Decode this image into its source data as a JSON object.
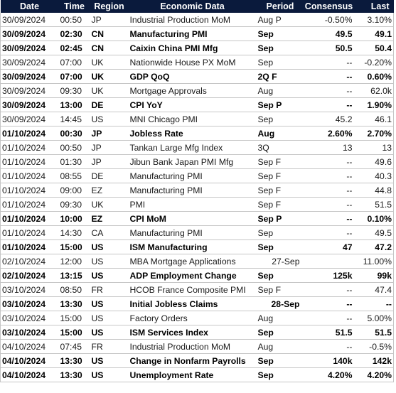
{
  "headers": [
    "Date",
    "Time",
    "Region",
    "Economic Data",
    "Period",
    "Consensus",
    "Last"
  ],
  "rows": [
    {
      "date": "30/09/2024",
      "time": "00:50",
      "region": "JP",
      "data": "Industrial Production MoM",
      "period": "Aug P",
      "consensus": "-0.50%",
      "last": "3.10%",
      "bold": false
    },
    {
      "date": "30/09/2024",
      "time": "02:30",
      "region": "CN",
      "data": "Manufacturing PMI",
      "period": "Sep",
      "consensus": "49.5",
      "last": "49.1",
      "bold": true
    },
    {
      "date": "30/09/2024",
      "time": "02:45",
      "region": "CN",
      "data": "Caixin China PMI Mfg",
      "period": "Sep",
      "consensus": "50.5",
      "last": "50.4",
      "bold": true
    },
    {
      "date": "30/09/2024",
      "time": "07:00",
      "region": "UK",
      "data": "Nationwide House PX MoM",
      "period": "Sep",
      "consensus": "--",
      "last": "-0.20%",
      "bold": false
    },
    {
      "date": "30/09/2024",
      "time": "07:00",
      "region": "UK",
      "data": "GDP QoQ",
      "period": "2Q F",
      "consensus": "--",
      "last": "0.60%",
      "bold": true
    },
    {
      "date": "30/09/2024",
      "time": "09:30",
      "region": "UK",
      "data": "Mortgage Approvals",
      "period": "Aug",
      "consensus": "--",
      "last": "62.0k",
      "bold": false
    },
    {
      "date": "30/09/2024",
      "time": "13:00",
      "region": "DE",
      "data": "CPI YoY",
      "period": "Sep P",
      "consensus": "--",
      "last": "1.90%",
      "bold": true
    },
    {
      "date": "30/09/2024",
      "time": "14:45",
      "region": "US",
      "data": "MNI Chicago PMI",
      "period": "Sep",
      "consensus": "45.2",
      "last": "46.1",
      "bold": false
    },
    {
      "date": "01/10/2024",
      "time": "00:30",
      "region": "JP",
      "data": "Jobless Rate",
      "period": "Aug",
      "consensus": "2.60%",
      "last": "2.70%",
      "bold": true,
      "sep": true
    },
    {
      "date": "01/10/2024",
      "time": "00:50",
      "region": "JP",
      "data": "Tankan Large Mfg Index",
      "period": "3Q",
      "consensus": "13",
      "last": "13",
      "bold": false
    },
    {
      "date": "01/10/2024",
      "time": "01:30",
      "region": "JP",
      "data": "Jibun Bank Japan PMI Mfg",
      "period": "Sep F",
      "consensus": "--",
      "last": "49.6",
      "bold": false
    },
    {
      "date": "01/10/2024",
      "time": "08:55",
      "region": "DE",
      "data": "Manufacturing PMI",
      "period": "Sep F",
      "consensus": "--",
      "last": "40.3",
      "bold": false
    },
    {
      "date": "01/10/2024",
      "time": "09:00",
      "region": "EZ",
      "data": "Manufacturing PMI",
      "period": "Sep F",
      "consensus": "--",
      "last": "44.8",
      "bold": false
    },
    {
      "date": "01/10/2024",
      "time": "09:30",
      "region": "UK",
      "data": "PMI",
      "period": "Sep F",
      "consensus": "--",
      "last": "51.5",
      "bold": false
    },
    {
      "date": "01/10/2024",
      "time": "10:00",
      "region": "EZ",
      "data": "CPI MoM",
      "period": "Sep P",
      "consensus": "--",
      "last": "0.10%",
      "bold": true
    },
    {
      "date": "01/10/2024",
      "time": "14:30",
      "region": "CA",
      "data": "Manufacturing PMI",
      "period": "Sep",
      "consensus": "--",
      "last": "49.5",
      "bold": false
    },
    {
      "date": "01/10/2024",
      "time": "15:00",
      "region": "US",
      "data": "ISM Manufacturing",
      "period": "Sep",
      "consensus": "47",
      "last": "47.2",
      "bold": true
    },
    {
      "date": "02/10/2024",
      "time": "12:00",
      "region": "US",
      "data": "MBA Mortgage Applications",
      "period": "27-Sep",
      "consensus": "",
      "last": "11.00%",
      "bold": false,
      "sep": true,
      "period_align": "right"
    },
    {
      "date": "02/10/2024",
      "time": "13:15",
      "region": "US",
      "data": "ADP Employment Change",
      "period": "Sep",
      "consensus": "125k",
      "last": "99k",
      "bold": true
    },
    {
      "date": "03/10/2024",
      "time": "08:50",
      "region": "FR",
      "data": "HCOB France Composite PMI",
      "period": "Sep F",
      "consensus": "--",
      "last": "47.4",
      "bold": false,
      "sep": true
    },
    {
      "date": "03/10/2024",
      "time": "13:30",
      "region": "US",
      "data": "Initial Jobless Claims",
      "period": "28-Sep",
      "consensus": "--",
      "last": "--",
      "bold": true,
      "period_align": "right"
    },
    {
      "date": "03/10/2024",
      "time": "15:00",
      "region": "US",
      "data": "Factory Orders",
      "period": "Aug",
      "consensus": "--",
      "last": "5.00%",
      "bold": false
    },
    {
      "date": "03/10/2024",
      "time": "15:00",
      "region": "US",
      "data": "ISM Services Index",
      "period": "Sep",
      "consensus": "51.5",
      "last": "51.5",
      "bold": true
    },
    {
      "date": "04/10/2024",
      "time": "07:45",
      "region": "FR",
      "data": "Industrial Production MoM",
      "period": "Aug",
      "consensus": "--",
      "last": "-0.5%",
      "bold": false,
      "sep": true
    },
    {
      "date": "04/10/2024",
      "time": "13:30",
      "region": "US",
      "data": "Change in Nonfarm Payrolls",
      "period": "Sep",
      "consensus": "140k",
      "last": "142k",
      "bold": true
    },
    {
      "date": "04/10/2024",
      "time": "13:30",
      "region": "US",
      "data": "Unemployment Rate",
      "period": "Sep",
      "consensus": "4.20%",
      "last": "4.20%",
      "bold": true
    }
  ],
  "colors": {
    "header_bg": "#0a1a3c",
    "header_text": "#ffffff",
    "grid": "#c6c6c6"
  }
}
